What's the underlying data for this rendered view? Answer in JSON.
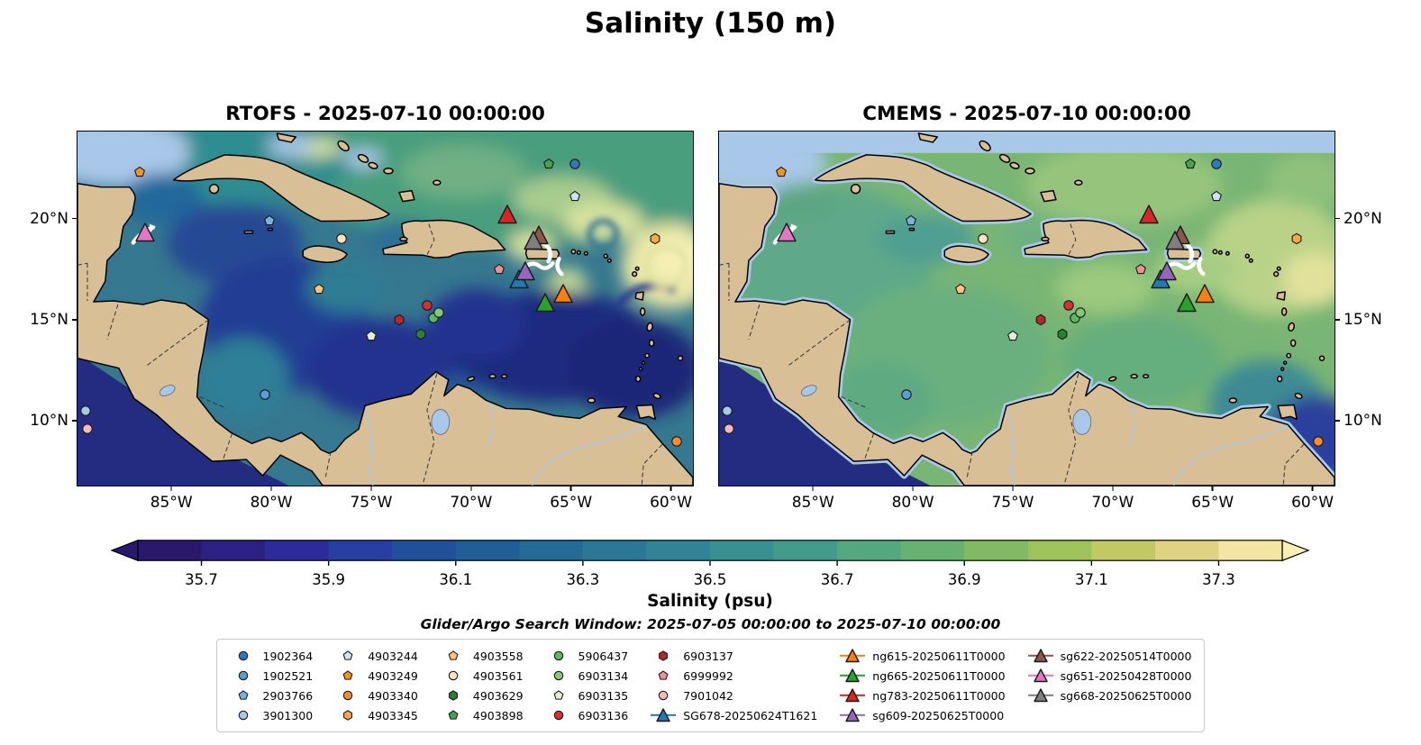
{
  "figure_title": "Salinity (150 m)",
  "search_window_note": "Glider/Argo Search Window: 2025-07-05 00:00:00 to 2025-07-10 00:00:00",
  "chart_data": {
    "type": "map",
    "title": "Salinity (150 m)",
    "panels": [
      {
        "id": "rtofs",
        "title": "RTOFS - 2025-07-10 00:00:00"
      },
      {
        "id": "cmems",
        "title": "CMEMS - 2025-07-10 00:00:00"
      }
    ],
    "extent": {
      "lon_min": -89.7,
      "lon_max": -58.9,
      "lat_min": 6.8,
      "lat_max": 24.3
    },
    "xticks": [
      {
        "lon": -85,
        "label": "85°W"
      },
      {
        "lon": -80,
        "label": "80°W"
      },
      {
        "lon": -75,
        "label": "75°W"
      },
      {
        "lon": -70,
        "label": "70°W"
      },
      {
        "lon": -65,
        "label": "65°W"
      },
      {
        "lon": -60,
        "label": "60°W"
      }
    ],
    "yticks": [
      {
        "lat": 20,
        "label": "20°N"
      },
      {
        "lat": 15,
        "label": "15°N"
      },
      {
        "lat": 10,
        "label": "10°N"
      }
    ],
    "colorbar": {
      "label": "Salinity (psu)",
      "vmin": 35.6,
      "vmax": 37.4,
      "extend": "both",
      "ticks": [
        "35.7",
        "35.9",
        "36.1",
        "36.3",
        "36.5",
        "36.7",
        "36.9",
        "37.1",
        "37.3"
      ],
      "under_color": "#29186b",
      "over_color": "#f9f0b5",
      "colors": [
        "#29186b",
        "#2c2183",
        "#2d2a9b",
        "#283ea2",
        "#21509b",
        "#1f5e97",
        "#246b96",
        "#2a7896",
        "#318495",
        "#399090",
        "#439c8a",
        "#53a880",
        "#66b272",
        "#80bb63",
        "#9fc35b",
        "#c1c964",
        "#dfd381",
        "#f4e5a3"
      ]
    },
    "platforms": [
      {
        "label": "1902364",
        "shape": "circle",
        "color": "#3178b8",
        "lon": -64.8,
        "lat": 22.7
      },
      {
        "label": "1902521",
        "shape": "circle",
        "color": "#5b9ed1",
        "lon": -80.3,
        "lat": 11.3
      },
      {
        "label": "2903766",
        "shape": "pentagon",
        "color": "#7ab4dd",
        "lon": -80.1,
        "lat": 19.9
      },
      {
        "label": "3901300",
        "shape": "circle",
        "color": "#a6cbe8",
        "lon": -89.3,
        "lat": 10.5
      },
      {
        "label": "4903244",
        "shape": "pentagon",
        "color": "#cfe3f2",
        "lon": -64.8,
        "lat": 21.1
      },
      {
        "label": "4903249",
        "shape": "pentagon",
        "color": "#f0941f",
        "lon": -86.6,
        "lat": 22.3
      },
      {
        "label": "4903340",
        "shape": "circle",
        "color": "#f78c28",
        "lon": -59.7,
        "lat": 9.0
      },
      {
        "label": "4903345",
        "shape": "hexagon",
        "color": "#f9a846",
        "lon": -60.8,
        "lat": 19.0
      },
      {
        "label": "4903558",
        "shape": "pentagon",
        "color": "#fbc37c",
        "lon": -77.6,
        "lat": 16.5
      },
      {
        "label": "4903561",
        "shape": "circle",
        "color": "#fce3c0",
        "lon": -76.5,
        "lat": 19.0
      },
      {
        "label": "4903629",
        "shape": "hexagon",
        "color": "#2c7e33",
        "lon": -72.5,
        "lat": 14.3
      },
      {
        "label": "4903898",
        "shape": "pentagon",
        "color": "#46a34c",
        "lon": -66.1,
        "lat": 22.7
      },
      {
        "label": "5906437",
        "shape": "circle",
        "color": "#5cb861",
        "lon": -71.9,
        "lat": 15.1
      },
      {
        "label": "6903134",
        "shape": "circle",
        "color": "#84ca74",
        "lon": -71.6,
        "lat": 15.35
      },
      {
        "label": "6903135",
        "shape": "pentagon",
        "color": "#dff0d3",
        "lon": -75.0,
        "lat": 14.2
      },
      {
        "label": "6903136",
        "shape": "circle",
        "color": "#d63031",
        "lon": -72.2,
        "lat": 15.7
      },
      {
        "label": "6903137",
        "shape": "hexagon",
        "color": "#b3282a",
        "lon": -73.6,
        "lat": 15.0
      },
      {
        "label": "6999992",
        "shape": "pentagon",
        "color": "#ea9191",
        "lon": -68.6,
        "lat": 17.5
      },
      {
        "label": "7901042",
        "shape": "circle",
        "color": "#f6b8b8",
        "lon": -89.2,
        "lat": 9.6
      },
      {
        "label": "SG678-20250624T1621",
        "shape": "triangle",
        "color": "#2277b4",
        "lon": -67.6,
        "lat": 17.0
      },
      {
        "label": "ng615-20250611T0000",
        "shape": "triangle",
        "color": "#ff7f0e",
        "lon": -65.4,
        "lat": 16.3
      },
      {
        "label": "ng665-20250611T0000",
        "shape": "triangle",
        "color": "#2ca02c",
        "lon": -66.3,
        "lat": 15.85
      },
      {
        "label": "ng783-20250611T0000",
        "shape": "triangle",
        "color": "#d62728",
        "lon": -68.2,
        "lat": 20.2
      },
      {
        "label": "sg609-20250625T0000",
        "shape": "triangle",
        "color": "#9467bd",
        "lon": -67.3,
        "lat": 17.4
      },
      {
        "label": "sg622-20250514T0000",
        "shape": "triangle",
        "color": "#8c564b",
        "lon": -66.6,
        "lat": 19.2
      },
      {
        "label": "sg651-20250428T0000",
        "shape": "triangle",
        "color": "#e377c2",
        "lon": -86.3,
        "lat": 19.3
      },
      {
        "label": "sg668-20250625T0000",
        "shape": "triangle",
        "color": "#7f7f7f",
        "lon": -66.9,
        "lat": 18.9
      }
    ],
    "legend_columns": [
      [
        "1902364",
        "1902521",
        "2903766",
        "3901300"
      ],
      [
        "4903244",
        "4903249",
        "4903340",
        "4903345"
      ],
      [
        "4903558",
        "4903561",
        "4903629",
        "4903898"
      ],
      [
        "5906437",
        "6903134",
        "6903135",
        "6903136"
      ],
      [
        "6903137",
        "6999992",
        "7901042",
        "SG678-20250624T1621"
      ],
      [
        "ng615-20250611T0000",
        "ng665-20250611T0000",
        "ng783-20250611T0000",
        "sg609-20250625T0000"
      ],
      [
        "sg622-20250514T0000",
        "sg651-20250428T0000",
        "sg668-20250625T0000"
      ]
    ]
  }
}
